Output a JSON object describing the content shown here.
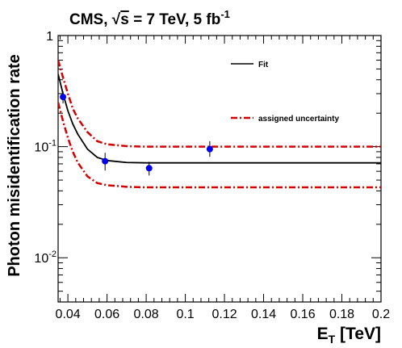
{
  "title": {
    "prefix": "CMS, ",
    "sqrt_sign": "√",
    "sqrt_arg": "s",
    "rest": " = 7 TeV, 5 fb",
    "exponent": "-1"
  },
  "colors": {
    "fit": "#000000",
    "uncertainty": "#d40000",
    "points": "#0000ee"
  },
  "chart_data": {
    "type": "line",
    "xlabel": {
      "main": "E",
      "sub": "T",
      "rest": " [TeV]"
    },
    "ylabel": "Photon misidentification rate",
    "xlim": [
      0.035,
      0.2
    ],
    "ylim": [
      0.004,
      1
    ],
    "yscale": "log",
    "xticks": [
      {
        "value": 0.04,
        "label": "0.04"
      },
      {
        "value": 0.06,
        "label": "0.06"
      },
      {
        "value": 0.08,
        "label": "0.08"
      },
      {
        "value": 0.1,
        "label": "0.1"
      },
      {
        "value": 0.12,
        "label": "0.12"
      },
      {
        "value": 0.14,
        "label": "0.14"
      },
      {
        "value": 0.16,
        "label": "0.16"
      },
      {
        "value": 0.18,
        "label": "0.18"
      },
      {
        "value": 0.2,
        "label": "0.2"
      }
    ],
    "yticks": [
      {
        "value": 1,
        "base": "1",
        "exp": ""
      },
      {
        "value": 0.1,
        "base": "10",
        "exp": "-1"
      },
      {
        "value": 0.01,
        "base": "10",
        "exp": "-2"
      }
    ],
    "legend": [
      {
        "label": "Fit",
        "style": "solid"
      },
      {
        "label": "assigned uncertainty",
        "style": "dash-dot"
      }
    ],
    "points": [
      {
        "x": 0.0375,
        "y": 0.28,
        "yerr_low": 0.245,
        "yerr_high": 0.315
      },
      {
        "x": 0.059,
        "y": 0.074,
        "yerr_low": 0.061,
        "yerr_high": 0.088
      },
      {
        "x": 0.0815,
        "y": 0.064,
        "yerr_low": 0.055,
        "yerr_high": 0.073
      },
      {
        "x": 0.1125,
        "y": 0.095,
        "yerr_low": 0.081,
        "yerr_high": 0.112
      }
    ],
    "series": [
      {
        "name": "Fit",
        "style": "solid",
        "x": [
          0.035,
          0.0375,
          0.04,
          0.0425,
          0.045,
          0.05,
          0.055,
          0.06,
          0.07,
          0.08,
          0.1,
          0.12,
          0.14,
          0.16,
          0.18,
          0.2
        ],
        "y": [
          0.45,
          0.3,
          0.21,
          0.16,
          0.13,
          0.095,
          0.08,
          0.075,
          0.072,
          0.0715,
          0.0715,
          0.0715,
          0.0715,
          0.0715,
          0.0715,
          0.0715
        ]
      },
      {
        "name": "assigned uncertainty",
        "style": "dash-dot",
        "x": [
          0.035,
          0.0375,
          0.04,
          0.0425,
          0.045,
          0.05,
          0.055,
          0.06,
          0.07,
          0.08,
          0.1,
          0.12,
          0.14,
          0.16,
          0.18,
          0.2
        ],
        "y": [
          0.6,
          0.42,
          0.3,
          0.22,
          0.18,
          0.135,
          0.112,
          0.105,
          0.101,
          0.1,
          0.1,
          0.1,
          0.1,
          0.1,
          0.1,
          0.1
        ]
      },
      {
        "name": "assigned uncertainty",
        "style": "dash-dot",
        "x": [
          0.035,
          0.0375,
          0.04,
          0.0425,
          0.045,
          0.05,
          0.055,
          0.06,
          0.07,
          0.08,
          0.1,
          0.12,
          0.14,
          0.16,
          0.18,
          0.2
        ],
        "y": [
          0.25,
          0.17,
          0.12,
          0.09,
          0.072,
          0.054,
          0.047,
          0.045,
          0.0435,
          0.043,
          0.043,
          0.043,
          0.043,
          0.043,
          0.043,
          0.043
        ]
      }
    ]
  }
}
